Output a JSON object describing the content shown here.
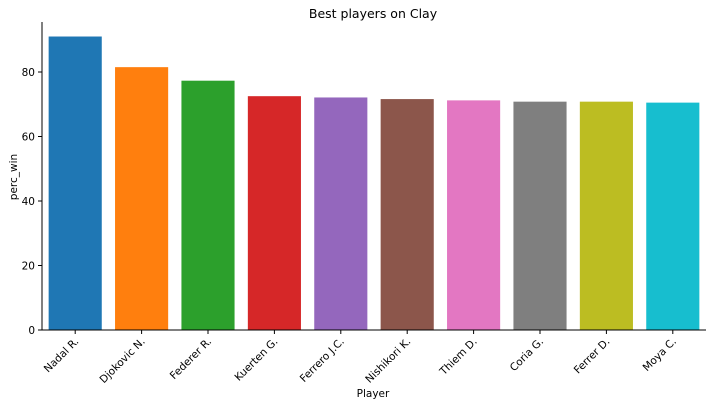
{
  "chart_data": {
    "type": "bar",
    "title": "Best players on Clay",
    "xlabel": "Player",
    "ylabel": "perc_win",
    "categories": [
      "Nadal R.",
      "Djokovic N.",
      "Federer R.",
      "Kuerten G.",
      "Ferrero J.C.",
      "Nishikori K.",
      "Thiem D.",
      "Coria G.",
      "Ferrer D.",
      "Moya C."
    ],
    "values": [
      91.0,
      81.5,
      77.3,
      72.5,
      72.1,
      71.6,
      71.2,
      70.8,
      70.8,
      70.5
    ],
    "colors": [
      "#1f77b4",
      "#ff7f0e",
      "#2ca02c",
      "#d62728",
      "#9467bd",
      "#8c564b",
      "#e377c2",
      "#7f7f7f",
      "#bcbd22",
      "#17becf"
    ],
    "ylim": [
      0,
      95.5
    ],
    "yticks": [
      0,
      20,
      40,
      60,
      80
    ],
    "grid": false,
    "legend": "none"
  }
}
